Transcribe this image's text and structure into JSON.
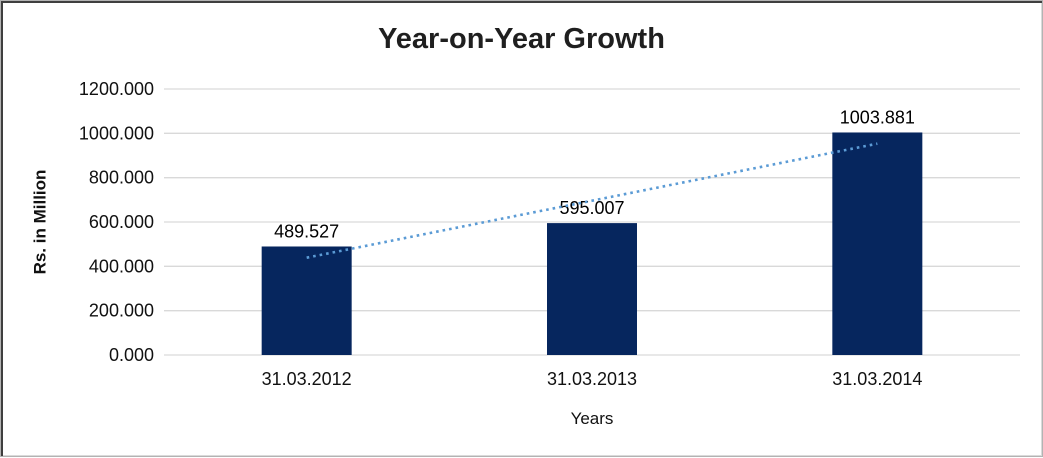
{
  "chart_data": {
    "type": "bar",
    "title": "Year-on-Year Growth",
    "xlabel": "Years",
    "ylabel": "Rs. in Million",
    "categories": [
      "31.03.2012",
      "31.03.2013",
      "31.03.2014"
    ],
    "values": [
      489.527,
      595.007,
      1003.881
    ],
    "data_labels": [
      "489.527",
      "595.007",
      "1003.881"
    ],
    "ylim": [
      0,
      1200
    ],
    "ytick_step": 200,
    "ytick_labels": [
      "0.000",
      "200.000",
      "400.000",
      "600.000",
      "800.000",
      "1000.000",
      "1200.000"
    ],
    "grid": true,
    "legend": "none",
    "colors": {
      "bar": "#06265e",
      "trendline": "#5b9bd5",
      "gridline": "#d9d9d9",
      "text": "#111111"
    },
    "trendline": {
      "type": "linear",
      "style": "dotted",
      "start_value": 439.0,
      "end_value": 953.3
    }
  }
}
